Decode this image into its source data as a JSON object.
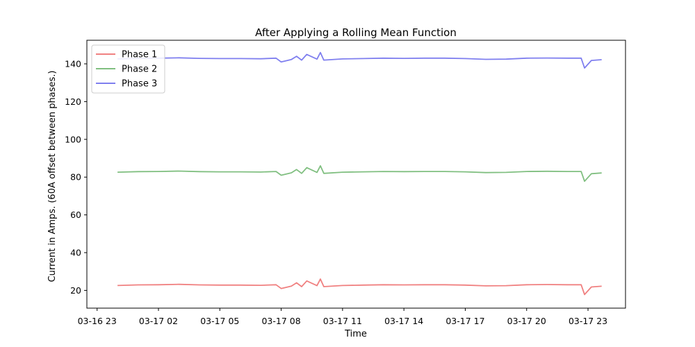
{
  "chart_data": {
    "type": "line",
    "title": "After Applying a Rolling Mean Function",
    "xlabel": "Time",
    "ylabel": "Current in Amps. (60A offset between phases.)",
    "xlim": [
      "03-16 22:30",
      "03-18 00:50"
    ],
    "ylim": [
      10.6,
      152.5
    ],
    "x_ticks": [
      "03-16 23",
      "03-17 02",
      "03-17 05",
      "03-17 08",
      "03-17 11",
      "03-17 14",
      "03-17 17",
      "03-17 20",
      "03-17 23"
    ],
    "y_ticks": [
      20,
      40,
      60,
      80,
      100,
      120,
      140
    ],
    "legend_position": "top-left",
    "grid": false,
    "series": [
      {
        "name": "Phase 1",
        "color": "#f08080",
        "points": [
          [
            "03-17 00:00",
            22.6
          ],
          [
            "03-17 01:00",
            22.9
          ],
          [
            "03-17 02:00",
            23.0
          ],
          [
            "03-17 03:00",
            23.2
          ],
          [
            "03-17 04:00",
            22.9
          ],
          [
            "03-17 05:00",
            22.8
          ],
          [
            "03-17 06:00",
            22.8
          ],
          [
            "03-17 07:00",
            22.7
          ],
          [
            "03-17 07:45",
            23.0
          ],
          [
            "03-17 08:00",
            21.0
          ],
          [
            "03-17 08:30",
            22.3
          ],
          [
            "03-17 08:45",
            24.0
          ],
          [
            "03-17 09:00",
            22.0
          ],
          [
            "03-17 09:15",
            25.0
          ],
          [
            "03-17 09:45",
            22.5
          ],
          [
            "03-17 09:55",
            26.0
          ],
          [
            "03-17 10:05",
            22.0
          ],
          [
            "03-17 11:00",
            22.6
          ],
          [
            "03-17 12:00",
            22.8
          ],
          [
            "03-17 13:00",
            23.0
          ],
          [
            "03-17 14:00",
            22.9
          ],
          [
            "03-17 15:00",
            23.0
          ],
          [
            "03-17 16:00",
            23.0
          ],
          [
            "03-17 17:00",
            22.8
          ],
          [
            "03-17 18:00",
            22.4
          ],
          [
            "03-17 19:00",
            22.5
          ],
          [
            "03-17 20:00",
            23.0
          ],
          [
            "03-17 21:00",
            23.1
          ],
          [
            "03-17 22:00",
            23.0
          ],
          [
            "03-17 22:40",
            23.0
          ],
          [
            "03-17 22:50",
            17.8
          ],
          [
            "03-17 23:10",
            21.8
          ],
          [
            "03-17 23:40",
            22.2
          ]
        ]
      },
      {
        "name": "Phase 2",
        "color": "#80bf80",
        "points": [
          [
            "03-17 00:00",
            82.6
          ],
          [
            "03-17 01:00",
            82.9
          ],
          [
            "03-17 02:00",
            83.0
          ],
          [
            "03-17 03:00",
            83.2
          ],
          [
            "03-17 04:00",
            82.9
          ],
          [
            "03-17 05:00",
            82.8
          ],
          [
            "03-17 06:00",
            82.8
          ],
          [
            "03-17 07:00",
            82.7
          ],
          [
            "03-17 07:45",
            83.0
          ],
          [
            "03-17 08:00",
            81.0
          ],
          [
            "03-17 08:30",
            82.3
          ],
          [
            "03-17 08:45",
            84.0
          ],
          [
            "03-17 09:00",
            82.0
          ],
          [
            "03-17 09:15",
            85.0
          ],
          [
            "03-17 09:45",
            82.5
          ],
          [
            "03-17 09:55",
            86.0
          ],
          [
            "03-17 10:05",
            82.0
          ],
          [
            "03-17 11:00",
            82.6
          ],
          [
            "03-17 12:00",
            82.8
          ],
          [
            "03-17 13:00",
            83.0
          ],
          [
            "03-17 14:00",
            82.9
          ],
          [
            "03-17 15:00",
            83.0
          ],
          [
            "03-17 16:00",
            83.0
          ],
          [
            "03-17 17:00",
            82.8
          ],
          [
            "03-17 18:00",
            82.4
          ],
          [
            "03-17 19:00",
            82.5
          ],
          [
            "03-17 20:00",
            83.0
          ],
          [
            "03-17 21:00",
            83.1
          ],
          [
            "03-17 22:00",
            83.0
          ],
          [
            "03-17 22:40",
            83.0
          ],
          [
            "03-17 22:50",
            77.8
          ],
          [
            "03-17 23:10",
            81.8
          ],
          [
            "03-17 23:40",
            82.2
          ]
        ]
      },
      {
        "name": "Phase 3",
        "color": "#7f7fef",
        "points": [
          [
            "03-17 00:00",
            142.6
          ],
          [
            "03-17 01:00",
            142.9
          ],
          [
            "03-17 02:00",
            143.0
          ],
          [
            "03-17 03:00",
            143.2
          ],
          [
            "03-17 04:00",
            142.9
          ],
          [
            "03-17 05:00",
            142.8
          ],
          [
            "03-17 06:00",
            142.8
          ],
          [
            "03-17 07:00",
            142.7
          ],
          [
            "03-17 07:45",
            143.0
          ],
          [
            "03-17 08:00",
            141.0
          ],
          [
            "03-17 08:30",
            142.3
          ],
          [
            "03-17 08:45",
            144.0
          ],
          [
            "03-17 09:00",
            142.0
          ],
          [
            "03-17 09:15",
            145.0
          ],
          [
            "03-17 09:45",
            142.5
          ],
          [
            "03-17 09:55",
            146.0
          ],
          [
            "03-17 10:05",
            142.0
          ],
          [
            "03-17 11:00",
            142.6
          ],
          [
            "03-17 12:00",
            142.8
          ],
          [
            "03-17 13:00",
            143.0
          ],
          [
            "03-17 14:00",
            142.9
          ],
          [
            "03-17 15:00",
            143.0
          ],
          [
            "03-17 16:00",
            143.0
          ],
          [
            "03-17 17:00",
            142.8
          ],
          [
            "03-17 18:00",
            142.4
          ],
          [
            "03-17 19:00",
            142.5
          ],
          [
            "03-17 20:00",
            143.0
          ],
          [
            "03-17 21:00",
            143.1
          ],
          [
            "03-17 22:00",
            143.0
          ],
          [
            "03-17 22:40",
            143.0
          ],
          [
            "03-17 22:50",
            137.8
          ],
          [
            "03-17 23:10",
            141.8
          ],
          [
            "03-17 23:40",
            142.2
          ]
        ]
      }
    ]
  }
}
